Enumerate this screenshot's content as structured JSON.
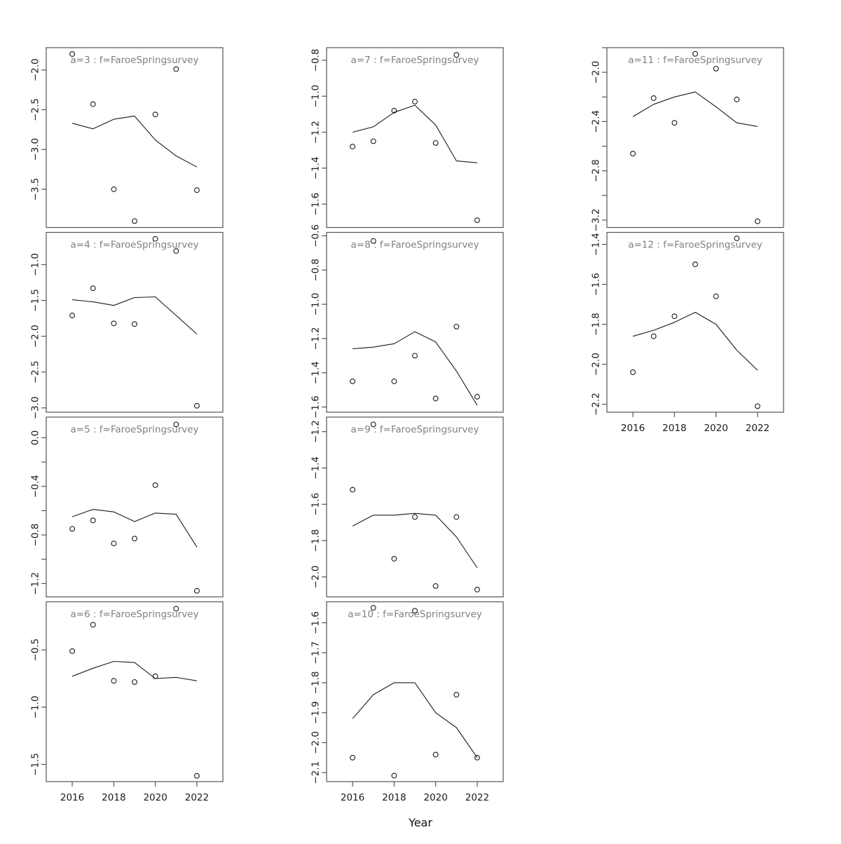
{
  "chart_data": {
    "type": "scatter",
    "xlabel": "Year",
    "x": [
      2016,
      2017,
      2018,
      2019,
      2020,
      2021,
      2022
    ],
    "xlim": [
      2014.75,
      2023.25
    ],
    "xticks": [
      2016,
      2018,
      2020,
      2022
    ],
    "xtick_labels": [
      "2016",
      "2018",
      "2020",
      "2022"
    ],
    "grid": false,
    "legend": null,
    "background": "#ffffff",
    "title_color": "#808080",
    "axis_color": "#555555",
    "series_color": "#1a1a1a",
    "panels": [
      {
        "a": 3,
        "f": "FaroeSpringsurvey",
        "title": "a=3 : f=FaroeSpringsurvey",
        "grid_row": 0,
        "grid_col": 0,
        "show_xaxis": false,
        "ylim": [
          -3.98,
          -1.72
        ],
        "yticks": [
          -2.0,
          -2.5,
          -3.0,
          -3.5
        ],
        "ytick_labels": [
          "−2.0",
          "−2.5",
          "−3.0",
          "−3.5"
        ],
        "points": [
          -1.8,
          -2.43,
          -3.5,
          -3.9,
          -2.56,
          -1.99,
          -3.51
        ],
        "line": [
          -2.67,
          -2.74,
          -2.62,
          -2.58,
          -2.88,
          -3.08,
          -3.22
        ]
      },
      {
        "a": 4,
        "f": "FaroeSpringsurvey",
        "title": "a=4 : f=FaroeSpringsurvey",
        "grid_row": 1,
        "grid_col": 0,
        "show_xaxis": false,
        "ylim": [
          -3.06,
          -0.55
        ],
        "yticks": [
          -1.0,
          -1.5,
          -2.0,
          -2.5,
          -3.0
        ],
        "ytick_labels": [
          "−1.0",
          "−1.5",
          "−2.0",
          "−2.5",
          "−3.0"
        ],
        "points": [
          -1.71,
          -1.33,
          -1.82,
          -1.83,
          -0.64,
          -0.81,
          -2.97
        ],
        "line": [
          -1.49,
          -1.52,
          -1.57,
          -1.46,
          -1.45,
          -1.71,
          -1.97
        ]
      },
      {
        "a": 5,
        "f": "FaroeSpringsurvey",
        "title": "a=5 : f=FaroeSpringsurvey",
        "grid_row": 2,
        "grid_col": 0,
        "show_xaxis": false,
        "ylim": [
          -1.31,
          0.17
        ],
        "yticks": [
          0.0,
          -0.2,
          -0.4,
          -0.6,
          -0.8,
          -1.0,
          -1.2
        ],
        "ytick_labels": [
          "0.0",
          "",
          "−0.4",
          "",
          "−0.8",
          "",
          "−1.2"
        ],
        "points": [
          -0.75,
          -0.68,
          -0.87,
          -0.83,
          -0.39,
          0.11,
          -1.26
        ],
        "line": [
          -0.65,
          -0.59,
          -0.61,
          -0.69,
          -0.62,
          -0.63,
          -0.9
        ]
      },
      {
        "a": 6,
        "f": "FaroeSpringsurvey",
        "title": "a=6 : f=FaroeSpringsurvey",
        "grid_row": 3,
        "grid_col": 0,
        "show_xaxis": true,
        "ylim": [
          -1.65,
          -0.08
        ],
        "yticks": [
          -0.5,
          -1.0,
          -1.5
        ],
        "ytick_labels": [
          "−0.5",
          "−1.0",
          "−1.5"
        ],
        "points": [
          -0.51,
          -0.28,
          -0.77,
          -0.78,
          -0.73,
          -0.14,
          -1.6
        ],
        "line": [
          -0.73,
          -0.66,
          -0.6,
          -0.61,
          -0.75,
          -0.74,
          -0.77
        ]
      },
      {
        "a": 7,
        "f": "FaroeSpringsurvey",
        "title": "a=7 : f=FaroeSpringsurvey",
        "grid_row": 0,
        "grid_col": 1,
        "show_xaxis": false,
        "ylim": [
          -1.73,
          -0.73
        ],
        "yticks": [
          -0.8,
          -1.0,
          -1.2,
          -1.4,
          -1.6
        ],
        "ytick_labels": [
          "−0.8",
          "−1.0",
          "−1.2",
          "−1.4",
          "−1.6"
        ],
        "points": [
          -1.28,
          -1.25,
          -1.08,
          -1.03,
          -1.26,
          -0.77,
          -1.69
        ],
        "line": [
          -1.2,
          -1.17,
          -1.09,
          -1.05,
          -1.16,
          -1.36,
          -1.37
        ]
      },
      {
        "a": 8,
        "f": "FaroeSpringsurvey",
        "title": "a=8 : f=FaroeSpringsurvey",
        "grid_row": 1,
        "grid_col": 1,
        "show_xaxis": false,
        "ylim": [
          -1.63,
          -0.58
        ],
        "yticks": [
          -0.6,
          -0.8,
          -1.0,
          -1.2,
          -1.4,
          -1.6
        ],
        "ytick_labels": [
          "−0.6",
          "−0.8",
          "−1.0",
          "−1.2",
          "−1.4",
          "−1.6"
        ],
        "points": [
          -1.45,
          -0.63,
          -1.45,
          -1.3,
          -1.55,
          -1.13,
          -1.54
        ],
        "line": [
          -1.26,
          -1.25,
          -1.23,
          -1.16,
          -1.22,
          -1.39,
          -1.59
        ]
      },
      {
        "a": 9,
        "f": "FaroeSpringsurvey",
        "title": "a=9 : f=FaroeSpringsurvey",
        "grid_row": 2,
        "grid_col": 1,
        "show_xaxis": false,
        "ylim": [
          -2.11,
          -1.12
        ],
        "yticks": [
          -1.2,
          -1.4,
          -1.6,
          -1.8,
          -2.0
        ],
        "ytick_labels": [
          "−1.2",
          "−1.4",
          "−1.6",
          "−1.8",
          "−2.0"
        ],
        "points": [
          -1.52,
          -1.16,
          -1.9,
          -1.67,
          -2.05,
          -1.67,
          -2.07
        ],
        "line": [
          -1.72,
          -1.66,
          -1.66,
          -1.65,
          -1.66,
          -1.78,
          -1.95
        ]
      },
      {
        "a": 10,
        "f": "FaroeSpringsurvey",
        "title": "a=10 : f=FaroeSpringsurvey",
        "grid_row": 3,
        "grid_col": 1,
        "show_xaxis": true,
        "ylim": [
          -2.13,
          -1.53
        ],
        "yticks": [
          -1.6,
          -1.7,
          -1.8,
          -1.9,
          -2.0,
          -2.1
        ],
        "ytick_labels": [
          "−1.6",
          "−1.7",
          "−1.8",
          "−1.9",
          "−2.0",
          "−2.1"
        ],
        "points": [
          -2.05,
          -1.55,
          -2.11,
          -1.56,
          -2.04,
          -1.84,
          -2.05
        ],
        "line": [
          -1.92,
          -1.84,
          -1.8,
          -1.8,
          -1.9,
          -1.95,
          -2.05
        ]
      },
      {
        "a": 11,
        "f": "FaroeSpringsurvey",
        "title": "a=11 : f=FaroeSpringsurvey",
        "grid_row": 0,
        "grid_col": 2,
        "show_xaxis": false,
        "ylim": [
          -3.26,
          -1.8
        ],
        "yticks": [
          -1.8,
          -2.0,
          -2.2,
          -2.4,
          -2.6,
          -2.8,
          -3.0,
          -3.2
        ],
        "ytick_labels": [
          "",
          "−2.0",
          "",
          "−2.4",
          "",
          "−2.8",
          "",
          "−3.2"
        ],
        "points": [
          -2.66,
          -2.21,
          -2.41,
          -1.85,
          -1.97,
          -2.22,
          -3.21
        ],
        "line": [
          -2.36,
          -2.26,
          -2.2,
          -2.16,
          -2.28,
          -2.41,
          -2.44
        ]
      },
      {
        "a": 12,
        "f": "FaroeSpringsurvey",
        "title": "a=12 : f=FaroeSpringsurvey",
        "grid_row": 1,
        "grid_col": 2,
        "show_xaxis": true,
        "ylim": [
          -2.24,
          -1.34
        ],
        "yticks": [
          -1.4,
          -1.6,
          -1.8,
          -2.0,
          -2.2
        ],
        "ytick_labels": [
          "−1.4",
          "−1.6",
          "−1.8",
          "−2.0",
          "−2.2"
        ],
        "points": [
          -2.04,
          -1.86,
          -1.76,
          -1.5,
          -1.66,
          -1.37,
          -2.21
        ],
        "line": [
          -1.86,
          -1.83,
          -1.79,
          -1.74,
          -1.8,
          -1.93,
          -2.03
        ]
      }
    ]
  }
}
